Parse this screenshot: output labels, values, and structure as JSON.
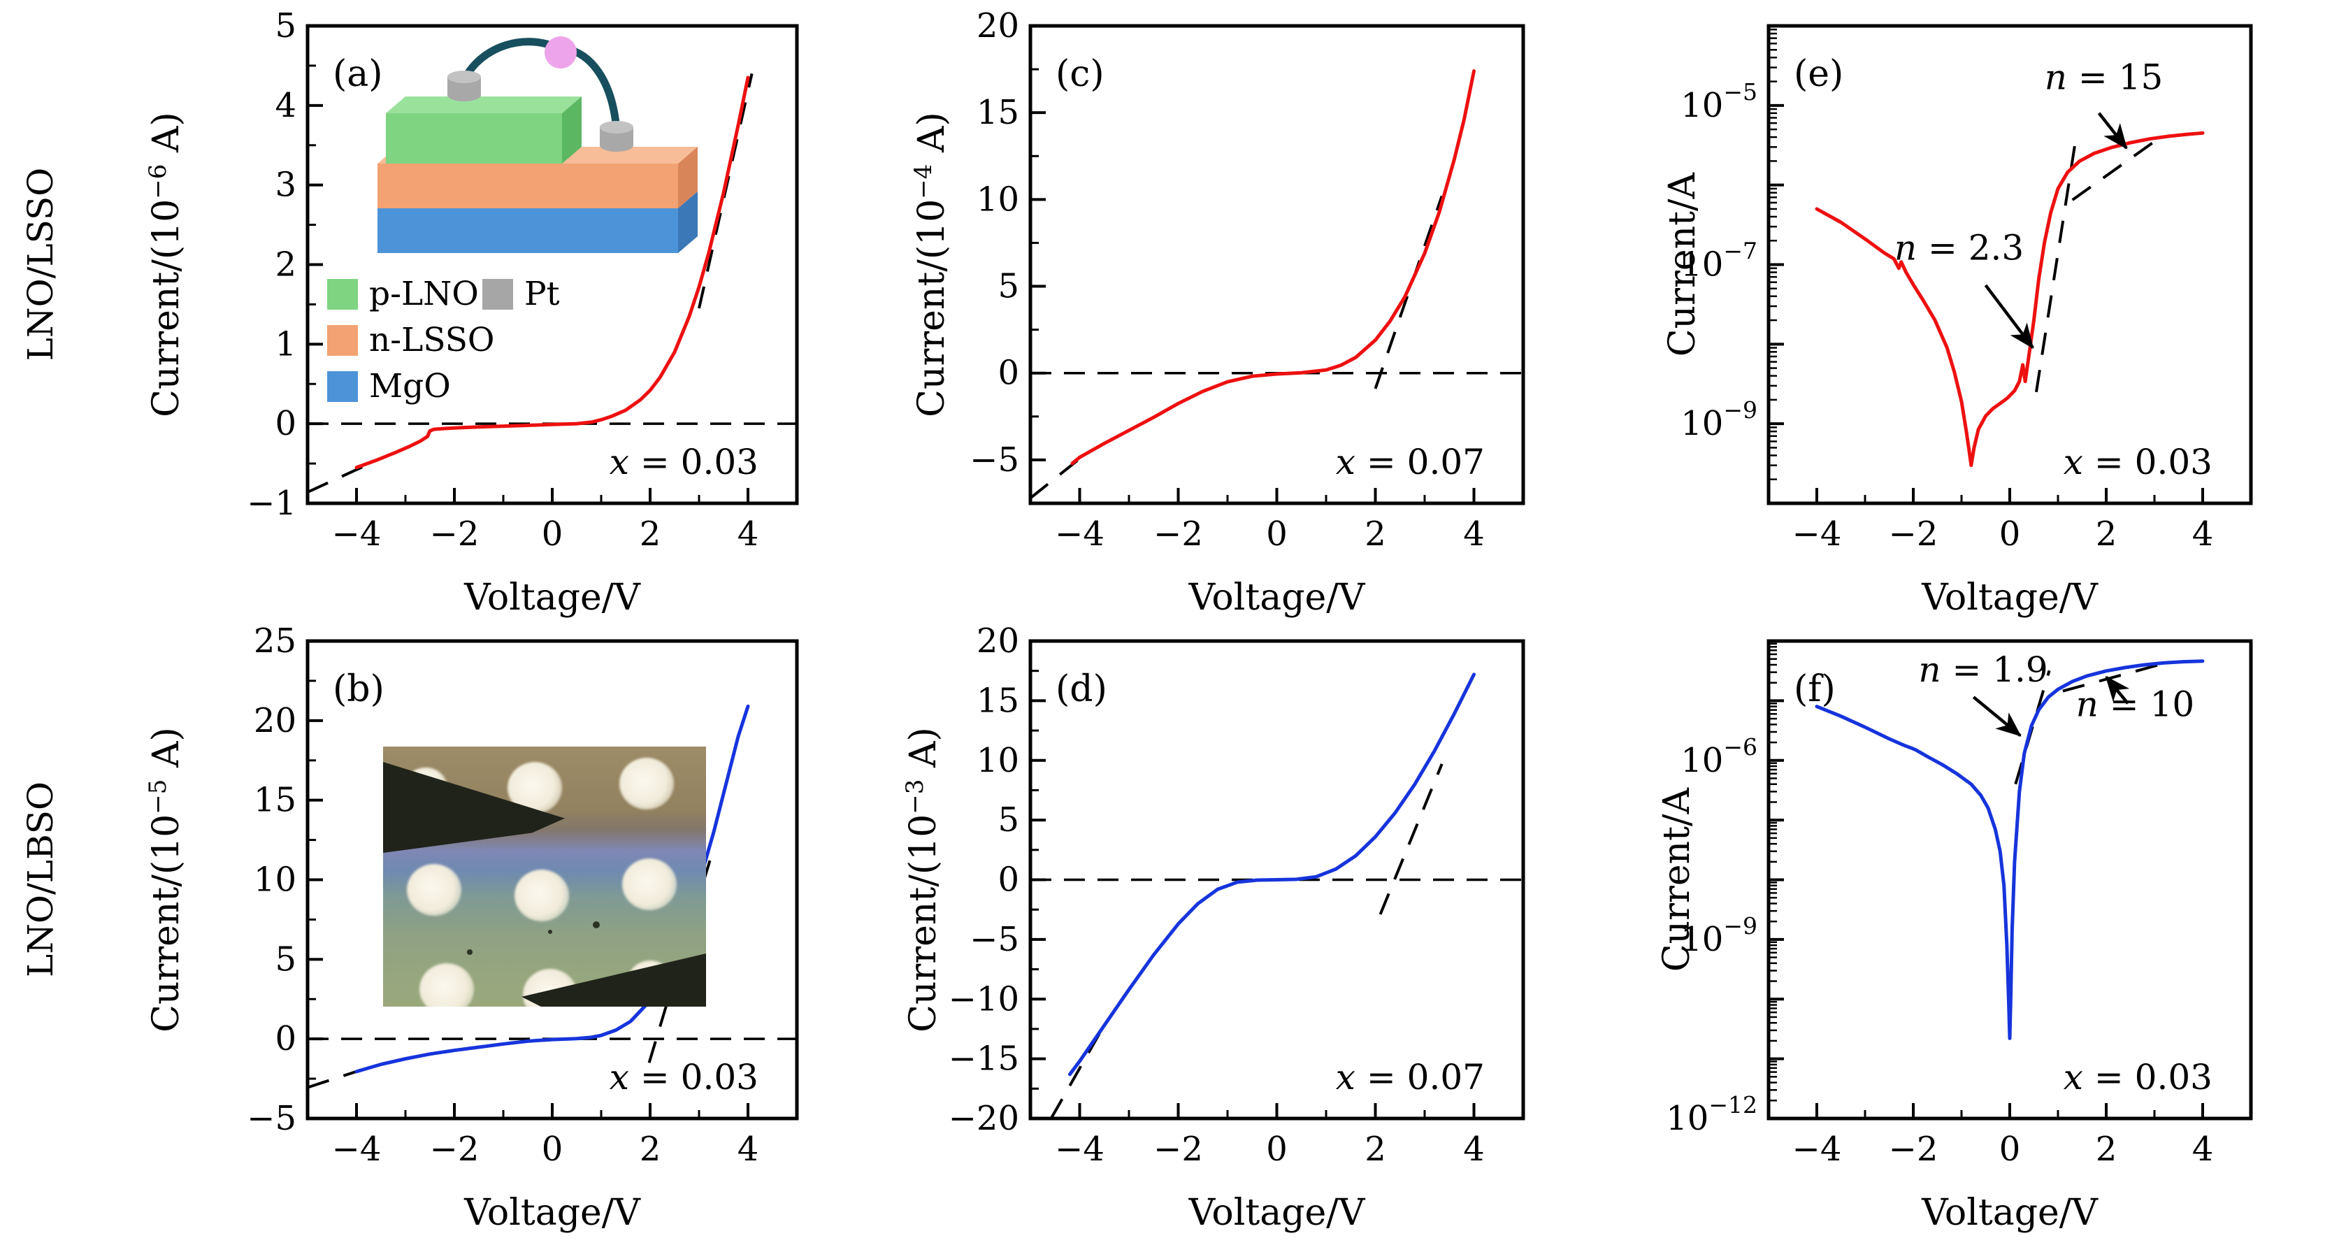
{
  "figure": {
    "row_labels": [
      "LNO/LSSO",
      "LNO/LBSO"
    ],
    "colors": {
      "red_curve": "#ed1010",
      "blue_curve": "#1634dc",
      "dash_black": "#000000",
      "frame": "#000000"
    }
  },
  "chart_data": [
    {
      "id": "a",
      "type": "line",
      "letter": "(a)",
      "xlabel": "Voltage/V",
      "ylabel": {
        "pre": "Current/(10",
        "sup": "−6",
        "post": " A)"
      },
      "yscale": "linear",
      "xlim": [
        -5,
        5
      ],
      "ylim": [
        -1,
        5
      ],
      "x_major_ticks": [
        -4,
        -2,
        0,
        2,
        4
      ],
      "x_major_labels": [
        "−4",
        "−2",
        "0",
        "2",
        "4"
      ],
      "x_minor_ticks": [
        -5,
        -3,
        -1,
        1,
        3,
        5
      ],
      "y_major_ticks": [
        -1,
        0,
        1,
        2,
        3,
        4,
        5
      ],
      "y_major_labels": [
        "−1",
        "0",
        "1",
        "2",
        "3",
        "4",
        "5"
      ],
      "y_minor_ticks": [
        -0.5,
        0.5,
        1.5,
        2.5,
        3.5,
        4.5
      ],
      "zero_line": true,
      "color": "#ed1010",
      "corner_annotation": "x = 0.03",
      "points": [
        [
          -4,
          -0.55
        ],
        [
          -3.6,
          -0.46
        ],
        [
          -3.2,
          -0.36
        ],
        [
          -2.9,
          -0.28
        ],
        [
          -2.7,
          -0.22
        ],
        [
          -2.55,
          -0.16
        ],
        [
          -2.5,
          -0.09
        ],
        [
          -2.42,
          -0.07
        ],
        [
          -2.2,
          -0.06
        ],
        [
          -1.9,
          -0.05
        ],
        [
          -1.5,
          -0.04
        ],
        [
          -1.0,
          -0.03
        ],
        [
          -0.5,
          -0.02
        ],
        [
          0,
          -0.01
        ],
        [
          0.5,
          0
        ],
        [
          0.8,
          0.02
        ],
        [
          1.0,
          0.05
        ],
        [
          1.2,
          0.09
        ],
        [
          1.5,
          0.17
        ],
        [
          1.8,
          0.3
        ],
        [
          2.0,
          0.42
        ],
        [
          2.2,
          0.58
        ],
        [
          2.5,
          0.9
        ],
        [
          2.8,
          1.35
        ],
        [
          3.0,
          1.72
        ],
        [
          3.2,
          2.15
        ],
        [
          3.5,
          2.9
        ],
        [
          3.8,
          3.75
        ],
        [
          4.0,
          4.35
        ]
      ],
      "dashed_lines": [
        [
          [
            -5,
            -0.86
          ],
          [
            -3.55,
            -0.45
          ]
        ],
        [
          [
            3.0,
            1.45
          ],
          [
            4.08,
            4.4
          ]
        ]
      ],
      "n_annotations": [],
      "legend": {
        "items": [
          {
            "label": "p-LNO",
            "color": "#7fd481"
          },
          {
            "label": "n-LSSO",
            "color": "#f2a273"
          },
          {
            "label": "MgO",
            "color": "#4d93d8"
          },
          {
            "label": "Pt",
            "color": "#a6a6a6"
          }
        ]
      },
      "inset": {
        "colors": {
          "green": "#7fd481",
          "green_top": "#9ae29c",
          "green_side": "#5cb763",
          "orange": "#f2a273",
          "orange_top": "#f6bd98",
          "orange_side": "#d9855a",
          "blue": "#4d93d8",
          "blue_side": "#3a78b8",
          "gray": "#a8a8a8",
          "gray_top": "#c2c2c2",
          "wire": "#174f5e",
          "ball": "#eda4ea"
        }
      }
    },
    {
      "id": "b",
      "type": "line",
      "letter": "(b)",
      "xlabel": "Voltage/V",
      "ylabel": {
        "pre": "Current/(10",
        "sup": "−5",
        "post": " A)"
      },
      "yscale": "linear",
      "xlim": [
        -5,
        5
      ],
      "ylim": [
        -5,
        25
      ],
      "x_major_ticks": [
        -4,
        -2,
        0,
        2,
        4
      ],
      "x_major_labels": [
        "−4",
        "−2",
        "0",
        "2",
        "4"
      ],
      "x_minor_ticks": [
        -5,
        -3,
        -1,
        1,
        3,
        5
      ],
      "y_major_ticks": [
        -5,
        0,
        5,
        10,
        15,
        20,
        25
      ],
      "y_major_labels": [
        "−5",
        "0",
        "5",
        "10",
        "15",
        "20",
        "25"
      ],
      "y_minor_ticks": [
        -2.5,
        2.5,
        7.5,
        12.5,
        17.5,
        22.5
      ],
      "zero_line": true,
      "color": "#1634dc",
      "corner_annotation": "x = 0.03",
      "points": [
        [
          -4,
          -2.05
        ],
        [
          -3.5,
          -1.6
        ],
        [
          -3,
          -1.25
        ],
        [
          -2.5,
          -0.95
        ],
        [
          -2,
          -0.72
        ],
        [
          -1.5,
          -0.52
        ],
        [
          -1,
          -0.32
        ],
        [
          -0.5,
          -0.14
        ],
        [
          0,
          -0.04
        ],
        [
          0.5,
          0.02
        ],
        [
          0.8,
          0.1
        ],
        [
          1,
          0.22
        ],
        [
          1.3,
          0.55
        ],
        [
          1.6,
          1.1
        ],
        [
          2,
          2.4
        ],
        [
          2.3,
          4.0
        ],
        [
          2.6,
          6.2
        ],
        [
          3,
          9.8
        ],
        [
          3.3,
          13
        ],
        [
          3.6,
          16.6
        ],
        [
          3.8,
          19
        ],
        [
          4,
          20.9
        ]
      ],
      "dashed_lines": [
        [
          [
            -5,
            -3.05
          ],
          [
            -3.8,
            -1.85
          ]
        ],
        [
          [
            1.98,
            -1.5
          ],
          [
            3.25,
            11.5
          ]
        ]
      ],
      "n_annotations": []
    },
    {
      "id": "c",
      "type": "line",
      "letter": "(c)",
      "xlabel": "Voltage/V",
      "ylabel": {
        "pre": "Current/(10",
        "sup": "−4",
        "post": " A)"
      },
      "yscale": "linear",
      "xlim": [
        -5,
        5
      ],
      "ylim": [
        -7.5,
        20
      ],
      "x_major_ticks": [
        -4,
        -2,
        0,
        2,
        4
      ],
      "x_major_labels": [
        "−4",
        "−2",
        "0",
        "2",
        "4"
      ],
      "x_minor_ticks": [
        -5,
        -3,
        -1,
        1,
        3,
        5
      ],
      "y_major_ticks": [
        -5,
        0,
        5,
        10,
        15,
        20
      ],
      "y_major_labels": [
        "−5",
        "0",
        "5",
        "10",
        "15",
        "20"
      ],
      "y_minor_ticks": [
        -2.5,
        2.5,
        7.5,
        12.5,
        17.5
      ],
      "zero_line": true,
      "color": "#ed1010",
      "corner_annotation": "x = 0.07",
      "points": [
        [
          -4.15,
          -5.2
        ],
        [
          -4,
          -4.85
        ],
        [
          -3.5,
          -4.05
        ],
        [
          -3,
          -3.3
        ],
        [
          -2.5,
          -2.55
        ],
        [
          -2,
          -1.75
        ],
        [
          -1.5,
          -1.05
        ],
        [
          -1,
          -0.5
        ],
        [
          -0.5,
          -0.18
        ],
        [
          0,
          -0.05
        ],
        [
          0.5,
          0.02
        ],
        [
          1,
          0.18
        ],
        [
          1.3,
          0.45
        ],
        [
          1.6,
          0.9
        ],
        [
          2,
          1.9
        ],
        [
          2.3,
          3.0
        ],
        [
          2.6,
          4.4
        ],
        [
          3,
          6.9
        ],
        [
          3.3,
          9.3
        ],
        [
          3.6,
          12.3
        ],
        [
          3.8,
          14.6
        ],
        [
          4,
          17.4
        ]
      ],
      "dashed_lines": [
        [
          [
            -5,
            -7.2
          ],
          [
            -3.9,
            -4.7
          ]
        ],
        [
          [
            2.0,
            -0.9
          ],
          [
            3.35,
            10.2
          ]
        ]
      ],
      "n_annotations": []
    },
    {
      "id": "d",
      "type": "line",
      "letter": "(d)",
      "xlabel": "Voltage/V",
      "ylabel": {
        "pre": "Current/(10",
        "sup": "−3",
        "post": " A)"
      },
      "yscale": "linear",
      "xlim": [
        -5,
        5
      ],
      "ylim": [
        -20,
        20
      ],
      "x_major_ticks": [
        -4,
        -2,
        0,
        2,
        4
      ],
      "x_major_labels": [
        "−4",
        "−2",
        "0",
        "2",
        "4"
      ],
      "x_minor_ticks": [
        -5,
        -3,
        -1,
        1,
        3,
        5
      ],
      "y_major_ticks": [
        -20,
        -15,
        -10,
        -5,
        0,
        5,
        10,
        15,
        20
      ],
      "y_major_labels": [
        "−20",
        "−15",
        "−10",
        "−5",
        "0",
        "5",
        "10",
        "15",
        "20"
      ],
      "y_minor_ticks": [
        -17.5,
        -12.5,
        -7.5,
        -2.5,
        2.5,
        7.5,
        12.5,
        17.5
      ],
      "zero_line": true,
      "color": "#1634dc",
      "corner_annotation": "x = 0.07",
      "points": [
        [
          -4.2,
          -16.3
        ],
        [
          -4,
          -15.2
        ],
        [
          -3.5,
          -12.2
        ],
        [
          -3,
          -9.2
        ],
        [
          -2.5,
          -6.3
        ],
        [
          -2,
          -3.7
        ],
        [
          -1.6,
          -2.0
        ],
        [
          -1.2,
          -0.8
        ],
        [
          -0.8,
          -0.2
        ],
        [
          -0.4,
          -0.03
        ],
        [
          0,
          0
        ],
        [
          0.4,
          0.04
        ],
        [
          0.8,
          0.25
        ],
        [
          1.2,
          0.9
        ],
        [
          1.6,
          2.0
        ],
        [
          2,
          3.6
        ],
        [
          2.4,
          5.6
        ],
        [
          2.8,
          8.0
        ],
        [
          3.2,
          10.8
        ],
        [
          3.6,
          13.9
        ],
        [
          4,
          17.2
        ]
      ],
      "dashed_lines": [
        [
          [
            -4.58,
            -20
          ],
          [
            -3.6,
            -12.9
          ]
        ],
        [
          [
            2.1,
            -2.9
          ],
          [
            3.35,
            9.7
          ]
        ]
      ],
      "n_annotations": []
    },
    {
      "id": "e",
      "type": "line",
      "letter": "(e)",
      "xlabel": "Voltage/V",
      "ylabel": {
        "pre": "Current/A",
        "sup": "",
        "post": ""
      },
      "yscale": "log",
      "xlim": [
        -5,
        5
      ],
      "ylim": [
        1e-10,
        0.0001
      ],
      "x_major_ticks": [
        -4,
        -2,
        0,
        2,
        4
      ],
      "x_major_labels": [
        "−4",
        "−2",
        "0",
        "2",
        "4"
      ],
      "x_minor_ticks": [
        -5,
        -3,
        -1,
        1,
        3,
        5
      ],
      "log_exp_min": -10,
      "log_exp_max": -4,
      "log_labeled_exps": [
        -5,
        -7,
        -9
      ],
      "zero_line": false,
      "color": "#ed1010",
      "corner_annotation": "x = 0.03",
      "points": [
        [
          -4,
          5e-07
        ],
        [
          -3.5,
          3.4e-07
        ],
        [
          -3,
          2.1e-07
        ],
        [
          -2.6,
          1.4e-07
        ],
        [
          -2.4,
          1.18e-07
        ],
        [
          -2.3,
          9e-08
        ],
        [
          -2.25,
          1.08e-07
        ],
        [
          -2.15,
          8e-08
        ],
        [
          -2.0,
          5.6e-08
        ],
        [
          -1.8,
          3.6e-08
        ],
        [
          -1.55,
          2e-08
        ],
        [
          -1.3,
          9e-09
        ],
        [
          -1.15,
          4.5e-09
        ],
        [
          -1.0,
          1.9e-09
        ],
        [
          -0.9,
          8e-10
        ],
        [
          -0.84,
          4.5e-10
        ],
        [
          -0.8,
          3e-10
        ],
        [
          -0.74,
          5e-10
        ],
        [
          -0.65,
          8.5e-10
        ],
        [
          -0.5,
          1.25e-09
        ],
        [
          -0.35,
          1.55e-09
        ],
        [
          -0.2,
          1.8e-09
        ],
        [
          -0.05,
          2.1e-09
        ],
        [
          0.1,
          2.6e-09
        ],
        [
          0.2,
          3.4e-09
        ],
        [
          0.27,
          5.5e-09
        ],
        [
          0.32,
          3.4e-09
        ],
        [
          0.36,
          5e-09
        ],
        [
          0.42,
          9e-09
        ],
        [
          0.5,
          2e-08
        ],
        [
          0.6,
          6.5e-08
        ],
        [
          0.72,
          1.9e-07
        ],
        [
          0.85,
          4.5e-07
        ],
        [
          1.0,
          9e-07
        ],
        [
          1.2,
          1.45e-06
        ],
        [
          1.45,
          2e-06
        ],
        [
          1.75,
          2.5e-06
        ],
        [
          2.1,
          2.95e-06
        ],
        [
          2.5,
          3.4e-06
        ],
        [
          2.9,
          3.8e-06
        ],
        [
          3.3,
          4.1e-06
        ],
        [
          3.7,
          4.35e-06
        ],
        [
          4.0,
          4.5e-06
        ]
      ],
      "dashed_lines": [
        [
          [
            0.55,
            2.5e-09
          ],
          [
            1.35,
            3.2e-06
          ]
        ],
        [
          [
            1.3,
            6.5e-07
          ],
          [
            3.2,
            4.3e-06
          ]
        ]
      ],
      "n_annotations": [
        {
          "text": "n = 2.3",
          "tx": -1.05,
          "ty": 1.15e-07,
          "arrow": [
            -0.5,
            5.5e-08,
            0.48,
            9e-09
          ]
        },
        {
          "text": "n = 15",
          "tx": 1.95,
          "ty": 1.6e-05,
          "arrow": [
            1.85,
            8e-06,
            2.42,
            2.9e-06
          ]
        }
      ]
    },
    {
      "id": "f",
      "type": "line",
      "letter": "(f)",
      "xlabel": "Voltage/V",
      "ylabel": {
        "pre": "Current/A",
        "sup": "",
        "post": ""
      },
      "yscale": "log",
      "xlim": [
        -5,
        5
      ],
      "ylim": [
        1e-12,
        0.0001
      ],
      "x_major_ticks": [
        -4,
        -2,
        0,
        2,
        4
      ],
      "x_major_labels": [
        "−4",
        "−2",
        "0",
        "2",
        "4"
      ],
      "x_minor_ticks": [
        -5,
        -3,
        -1,
        1,
        3,
        5
      ],
      "log_exp_min": -12,
      "log_exp_max": -4,
      "log_labeled_exps": [
        -6,
        -9,
        -12
      ],
      "zero_line": false,
      "color": "#1634dc",
      "corner_annotation": "x = 0.03",
      "points": [
        [
          -4,
          8e-06
        ],
        [
          -3.5,
          5.5e-06
        ],
        [
          -3,
          3.6e-06
        ],
        [
          -2.5,
          2.3e-06
        ],
        [
          -2.2,
          1.8e-06
        ],
        [
          -2.05,
          1.62e-06
        ],
        [
          -1.95,
          1.5e-06
        ],
        [
          -1.7,
          1.15e-06
        ],
        [
          -1.4,
          8.5e-07
        ],
        [
          -1.1,
          6e-07
        ],
        [
          -0.8,
          4e-07
        ],
        [
          -0.6,
          2.6e-07
        ],
        [
          -0.45,
          1.6e-07
        ],
        [
          -0.3,
          7e-08
        ],
        [
          -0.2,
          3e-08
        ],
        [
          -0.12,
          8e-09
        ],
        [
          -0.06,
          8e-10
        ],
        [
          -0.02,
          8e-11
        ],
        [
          0,
          2.2e-11
        ],
        [
          0.02,
          1e-10
        ],
        [
          0.05,
          1.5e-09
        ],
        [
          0.1,
          2e-08
        ],
        [
          0.2,
          3e-07
        ],
        [
          0.3,
          1.3e-06
        ],
        [
          0.45,
          3.8e-06
        ],
        [
          0.6,
          7e-06
        ],
        [
          0.8,
          1.15e-05
        ],
        [
          1,
          1.55e-05
        ],
        [
          1.3,
          2.1e-05
        ],
        [
          1.6,
          2.6e-05
        ],
        [
          2,
          3.15e-05
        ],
        [
          2.4,
          3.6e-05
        ],
        [
          2.8,
          4e-05
        ],
        [
          3.2,
          4.3e-05
        ],
        [
          3.6,
          4.5e-05
        ],
        [
          4,
          4.6e-05
        ]
      ],
      "dashed_lines": [
        [
          [
            0.12,
            4e-07
          ],
          [
            0.82,
            3.2e-05
          ]
        ],
        [
          [
            1.1,
            1.45e-05
          ],
          [
            3.35,
            4.55e-05
          ]
        ]
      ],
      "n_annotations": [
        {
          "text": "n = 1.9",
          "tx": -0.55,
          "ty": 2.1e-05,
          "arrow": [
            -0.75,
            1.15e-05,
            0.22,
            2.6e-06
          ]
        },
        {
          "text": "n = 10",
          "tx": 2.6,
          "ty": 5.5e-06,
          "arrow": [
            2.45,
            9e-06,
            2.0,
            2.5e-05
          ]
        }
      ]
    }
  ]
}
